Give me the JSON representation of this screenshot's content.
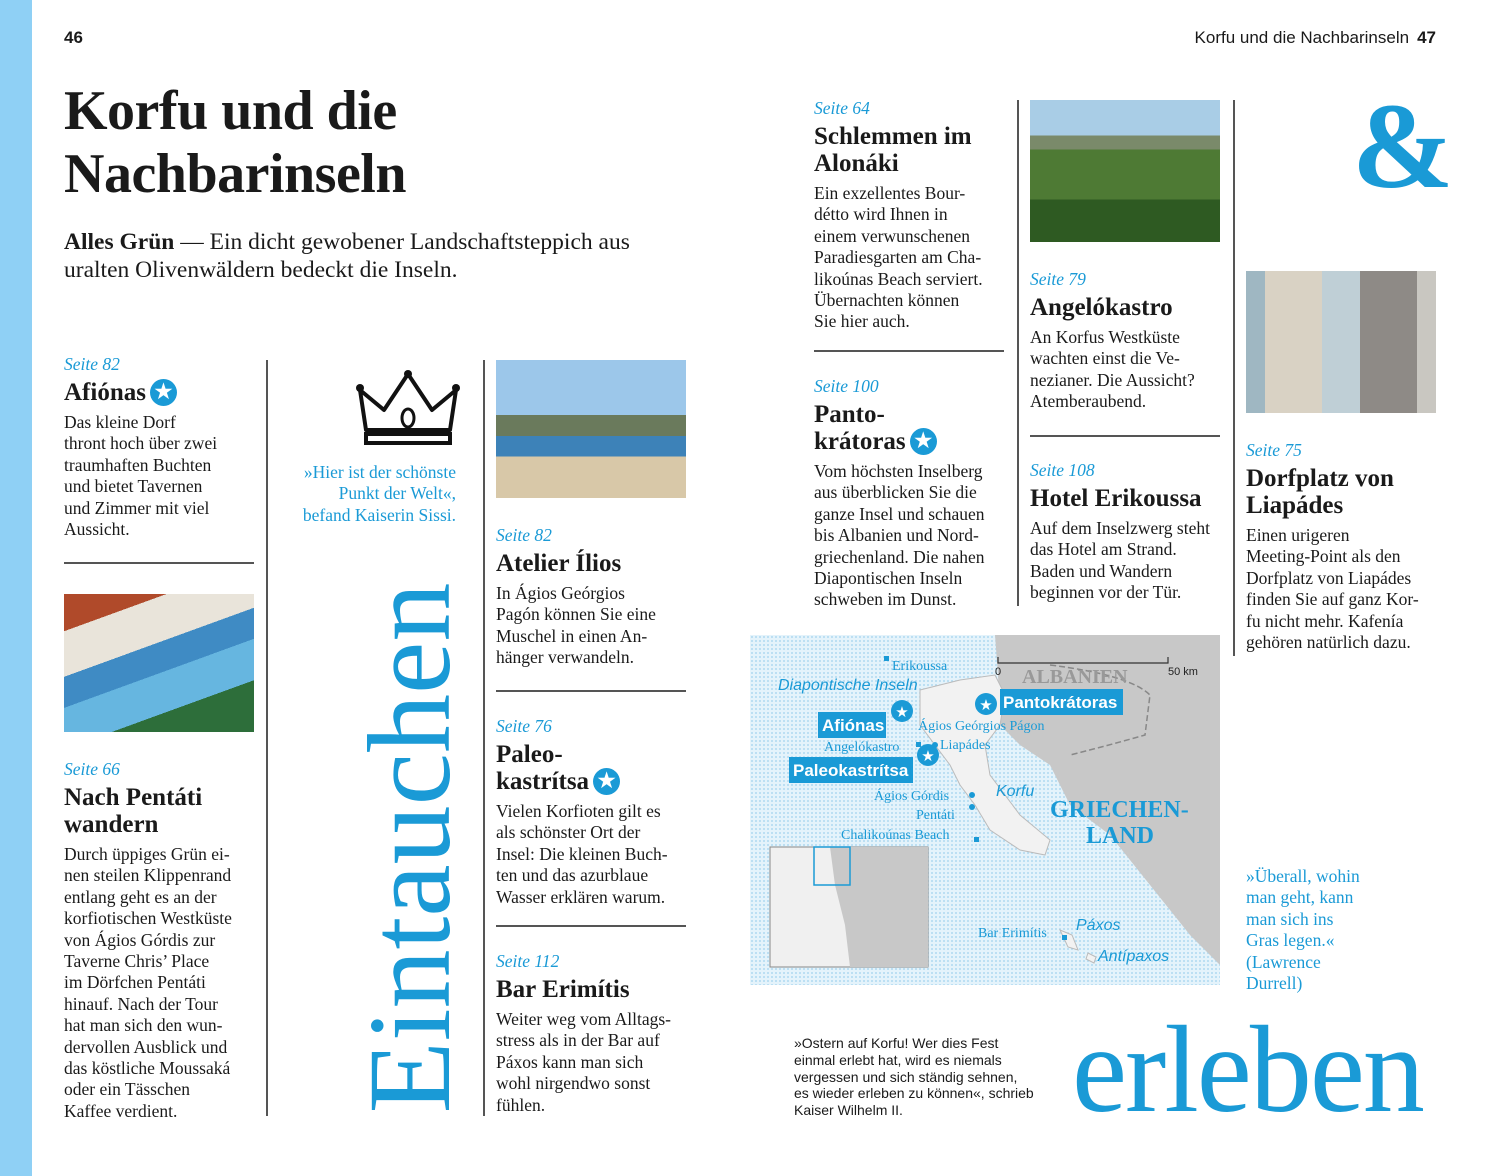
{
  "header": {
    "left_page": "46",
    "running_title": "Korfu und die Nachbarinseln",
    "right_page": "47"
  },
  "title": "Korfu und die\nNachbarinseln",
  "intro": {
    "lead": "Alles Grün",
    "text": " — Ein dicht gewobener Landschaftsteppich aus uralten Olivenwäldern bedeckt die Inseln."
  },
  "entries": [
    {
      "page": "Seite 82",
      "title": "Afiónas",
      "star": true,
      "text": "Das kleine Dorf\nthront hoch über zwei\ntraumhaften Buchten\nund bietet Tavernen\nund Zimmer mit viel\nAussicht."
    },
    {
      "page": "Seite 66",
      "title": "Nach Pentáti\nwandern",
      "star": false,
      "text": "Durch üppiges Grün ei-\nnen steilen Klippenrand\nentlang geht es an der\nkorfiotischen Westküste\nvon Ágios Górdis zur\nTaverne Chris’ Place\nim Dörfchen Pentáti\nhinauf. Nach der Tour\nhat man sich den wun-\ndervollen Ausblick und\ndas köstliche Moussaká\noder ein Tässchen\nKaffee verdient."
    },
    {
      "page": "Seite 82",
      "title": "Atelier Ílios",
      "star": false,
      "text": "In Ágios Geórgios\nPagón können Sie eine\nMuschel in einen An-\nhänger verwandeln."
    },
    {
      "page": "Seite 76",
      "title": "Paleo-\nkastrítsa",
      "star": true,
      "text": "Vielen Korfioten gilt es\nals schönster Ort der\nInsel: Die kleinen Buch-\nten und das azurblaue\nWasser erklären warum."
    },
    {
      "page": "Seite 112",
      "title": "Bar Erimítis",
      "star": false,
      "text": "Weiter weg vom Alltags-\nstress als in der Bar auf\nPáxos kann man sich\nwohl nirgendwo sonst\nfühlen."
    },
    {
      "page": "Seite 64",
      "title": "Schlemmen im\nAlonáki",
      "star": false,
      "text": "Ein exzellentes Bour-\ndétto wird Ihnen in\neinem verwunschenen\nParadiesgarten am Cha-\nlikoúnas Beach serviert.\nÜbernachten können\nSie hier auch."
    },
    {
      "page": "Seite 100",
      "title": "Panto-\nkrátoras",
      "star": true,
      "text": "Vom höchsten Inselberg\naus überblicken Sie die\nganze Insel und schauen\nbis Albanien und Nord-\ngriechenland. Die nahen\nDiapontischen Inseln\nschweben im Dunst."
    },
    {
      "page": "Seite 79",
      "title": "Angelókastro",
      "star": false,
      "text": "An Korfus Westküste\nwachten einst die Ve-\nnezianer. Die Aussicht?\nAtemberaubend."
    },
    {
      "page": "Seite 108",
      "title": "Hotel Erikoussa",
      "star": false,
      "text": "Auf dem Inselzwerg steht\ndas Hotel am Strand.\nBaden und Wandern\nbeginnen vor der Tür."
    },
    {
      "page": "Seite 75",
      "title": "Dorfplatz von\nLiapádes",
      "star": false,
      "text": "Einen urigeren\nMeeting-Point als den\nDorfplatz von Liapádes\nfinden Sie auf ganz Kor-\nfu nicht mehr. Kafenía\ngehören natürlich dazu."
    }
  ],
  "quotes": {
    "sissi": "»Hier ist der schönste\nPunkt der Welt«,\nbefand Kaiserin Sissi.",
    "durrell": "»Überall, wohin\nman geht, kann\nman sich ins\nGras legen.«\n(Lawrence\nDurrell)",
    "wilhelm": "»Ostern auf Korfu! Wer dies Fest\neinmal erlebt hat, wird es niemals\nvergessen und sich ständig sehnen,\nes wieder erleben zu können«, schrieb\nKaiser Wilhelm II."
  },
  "display": {
    "eintauchen": "Eintauchen",
    "ampersand": "&",
    "erleben": "erleben"
  },
  "icons": [
    "crown-icon",
    "star-icon"
  ],
  "map": {
    "scale": {
      "zero": "0",
      "max": "50 km"
    },
    "countries": {
      "albania": "ALBANIEN",
      "greece_1": "GRIECHEN-",
      "greece_2": "LAND"
    },
    "regions": {
      "diapontische": "Diapontische Inseln",
      "korfu": "Korfu",
      "paxos": "Páxos",
      "antipaxos": "Antípaxos"
    },
    "highlights": {
      "afionas": "Afiónas",
      "paleokastritsa": "Paleokastrítsa",
      "pantokratoras": "Pantokrátoras"
    },
    "places": {
      "erikoussa": "Erikoussa",
      "agios_georgios": "Ágios Geórgios Págon",
      "angelokastro": "Angelókastro",
      "liapades": "Liapádes",
      "agios_gordis": "Ágios Górdis",
      "pentati": "Pentáti",
      "chalikounas": "Chalikoúnas Beach",
      "bar_erimitis": "Bar Erimítis"
    }
  },
  "colors": {
    "accent": "#1a9ad6",
    "sidebar": "#8fd0f5",
    "land": "#c8c8c8",
    "sea": "#d6eef9"
  }
}
